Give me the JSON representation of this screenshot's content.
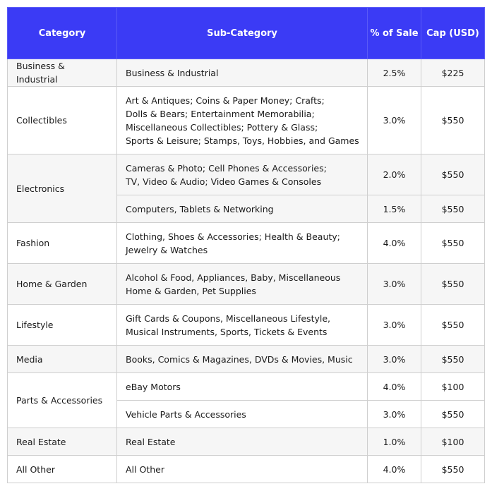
{
  "table": {
    "header": [
      "Category",
      "Sub-Category",
      "% of Sale",
      "Cap (USD)"
    ],
    "rows": [
      {
        "category": "Business & Industrial",
        "subs": [
          {
            "lines": [
              "Business & Industrial"
            ],
            "pct": "2.5%",
            "cap": "$225"
          }
        ]
      },
      {
        "category": "Collectibles",
        "subs": [
          {
            "lines": [
              "Art & Antiques; Coins & Paper Money; Crafts;",
              "Dolls & Bears; Entertainment Memorabilia;",
              "Miscellaneous Collectibles; Pottery & Glass;",
              "Sports & Leisure; Stamps, Toys, Hobbies, and Games"
            ],
            "pct": "3.0%",
            "cap": "$550"
          }
        ]
      },
      {
        "category": "Electronics",
        "subs": [
          {
            "lines": [
              "Cameras & Photo; Cell Phones & Accessories;",
              "TV, Video & Audio; Video Games & Consoles"
            ],
            "pct": "2.0%",
            "cap": "$550"
          },
          {
            "lines": [
              "Computers, Tablets & Networking"
            ],
            "pct": "1.5%",
            "cap": "$550"
          }
        ]
      },
      {
        "category": "Fashion",
        "subs": [
          {
            "lines": [
              "Clothing, Shoes & Accessories; Health & Beauty;",
              "Jewelry & Watches"
            ],
            "pct": "4.0%",
            "cap": "$550"
          }
        ]
      },
      {
        "category": "Home & Garden",
        "subs": [
          {
            "lines": [
              "Alcohol & Food, Appliances, Baby, Miscellaneous",
              "Home & Garden, Pet Supplies"
            ],
            "pct": "3.0%",
            "cap": "$550"
          }
        ]
      },
      {
        "category": "Lifestyle",
        "subs": [
          {
            "lines": [
              "Gift Cards & Coupons, Miscellaneous Lifestyle,",
              "Musical Instruments, Sports, Tickets & Events"
            ],
            "pct": "3.0%",
            "cap": "$550"
          }
        ]
      },
      {
        "category": "Media",
        "subs": [
          {
            "lines": [
              "Books, Comics & Magazines, DVDs & Movies, Music"
            ],
            "pct": "3.0%",
            "cap": "$550"
          }
        ]
      },
      {
        "category": "Parts & Accessories",
        "subs": [
          {
            "lines": [
              "eBay Motors"
            ],
            "pct": "4.0%",
            "cap": "$100"
          },
          {
            "lines": [
              "Vehicle Parts & Accessories"
            ],
            "pct": "3.0%",
            "cap": "$550"
          }
        ]
      },
      {
        "category": "Real Estate",
        "subs": [
          {
            "lines": [
              "Real Estate"
            ],
            "pct": "1.0%",
            "cap": "$100"
          }
        ]
      },
      {
        "category": "All Other",
        "subs": [
          {
            "lines": [
              "All Other"
            ],
            "pct": "4.0%",
            "cap": "$550"
          }
        ]
      }
    ]
  }
}
